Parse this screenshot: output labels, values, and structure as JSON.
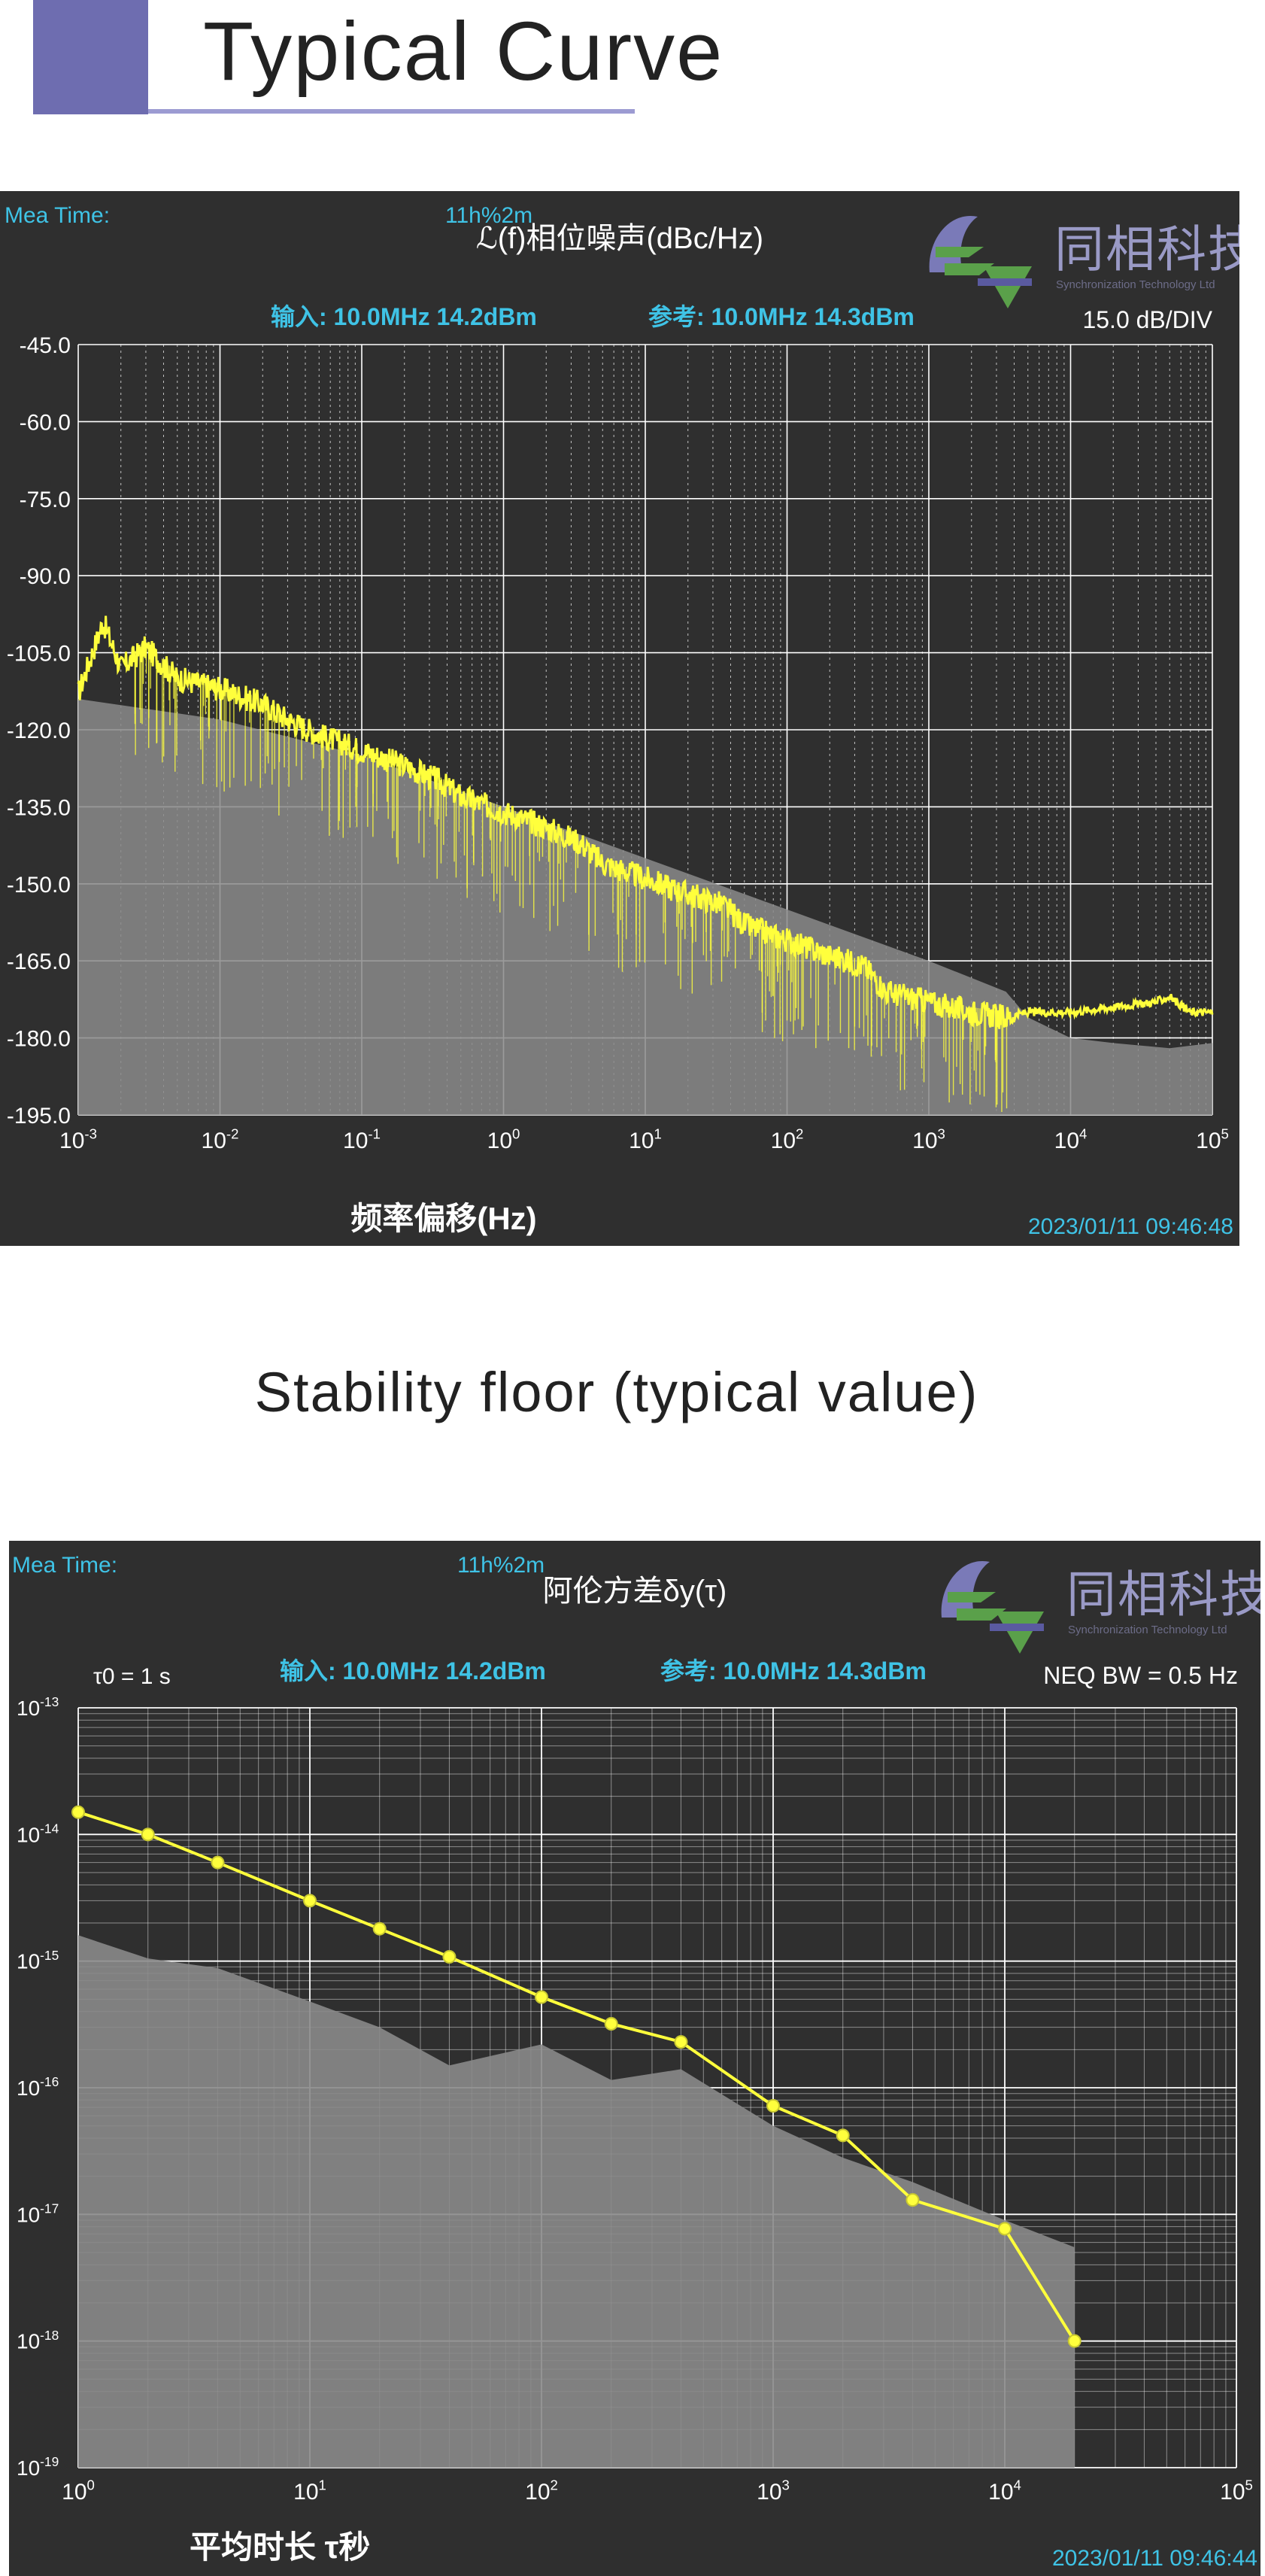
{
  "page": {
    "title": "Typical Curve",
    "section_title": "Stability floor (typical value)"
  },
  "colors": {
    "header_block": "#6e6db0",
    "header_line": "#9c9bd2",
    "chart_bg": "#2f2f2f",
    "grid": "#ffffff",
    "trace": "#ffff3c",
    "floor": "#8a8a8a",
    "info_text": "#3fc3e6",
    "white_text": "#ffffff"
  },
  "chart_data": [
    {
      "type": "line",
      "title": "ℒ(f)相位噪声(dBc/Hz)",
      "mea_time_label": "Mea Time:",
      "mea_time_value": "11h%2m",
      "input_info": "输入: 10.0MHz 14.2dBm",
      "ref_info": "参考: 10.0MHz 14.3dBm",
      "scale_info": "15.0 dB/DIV",
      "xlabel": "频率偏移(Hz)",
      "timestamp": "2023/01/11 09:46:48",
      "logo_cn": "同相科技",
      "logo_en": "Synchronization Technology Ltd",
      "x_scale": "log",
      "xlim": [
        0.001,
        100000
      ],
      "ylim": [
        -195,
        -45
      ],
      "x_ticks": [
        {
          "base": "10",
          "exp": "-3"
        },
        {
          "base": "10",
          "exp": "-2"
        },
        {
          "base": "10",
          "exp": "-1"
        },
        {
          "base": "10",
          "exp": "0"
        },
        {
          "base": "10",
          "exp": "1"
        },
        {
          "base": "10",
          "exp": "2"
        },
        {
          "base": "10",
          "exp": "3"
        },
        {
          "base": "10",
          "exp": "4"
        },
        {
          "base": "10",
          "exp": "5"
        }
      ],
      "y_ticks": [
        "-45.0",
        "-60.0",
        "-75.0",
        "-90.0",
        "-105.0",
        "-120.0",
        "-135.0",
        "-150.0",
        "-165.0",
        "-180.0",
        "-195.0"
      ],
      "grid": true,
      "series": [
        {
          "role": "measured",
          "x": [
            0.001,
            0.0015,
            0.002,
            0.003,
            0.005,
            0.01,
            0.02,
            0.03,
            0.05,
            0.1,
            0.2,
            0.35,
            0.5,
            1,
            2,
            3.5,
            5,
            10,
            20,
            35,
            50,
            100,
            200,
            350,
            500,
            1000,
            2000,
            3500,
            5000,
            10000,
            20000,
            40000,
            50000,
            70000,
            100000
          ],
          "y": [
            -113,
            -99,
            -108,
            -104,
            -110,
            -112,
            -115,
            -118,
            -121,
            -124,
            -127,
            -130,
            -133,
            -136,
            -139,
            -142,
            -146,
            -149,
            -152,
            -154,
            -158,
            -161,
            -164,
            -166,
            -171,
            -173,
            -175,
            -176,
            -175,
            -175,
            -174,
            -173,
            -172,
            -175,
            -175
          ]
        },
        {
          "role": "floor",
          "x": [
            0.001,
            0.01,
            0.1,
            1,
            10,
            100,
            1000,
            3500,
            5000,
            10000,
            20000,
            50000,
            100000
          ],
          "y": [
            -114,
            -118,
            -125,
            -135,
            -145,
            -155,
            -165,
            -171,
            -176,
            -180,
            -181,
            -182,
            -181
          ]
        }
      ]
    },
    {
      "type": "line",
      "title": "阿伦方差δy(τ)",
      "mea_time_label": "Mea Time:",
      "mea_time_value": "11h%2m",
      "tau0_info": "τ0 = 1 s",
      "input_info": "输入: 10.0MHz 14.2dBm",
      "ref_info": "参考: 10.0MHz 14.3dBm",
      "bw_info": "NEQ BW = 0.5 Hz",
      "xlabel": "平均时长 τ秒",
      "timestamp": "2023/01/11 09:46:44",
      "logo_cn": "同相科技",
      "logo_en": "Synchronization Technology Ltd",
      "x_scale": "log",
      "y_scale": "log",
      "xlim": [
        1,
        100000
      ],
      "ylim": [
        1e-19,
        1e-13
      ],
      "x_ticks": [
        {
          "base": "10",
          "exp": "0"
        },
        {
          "base": "10",
          "exp": "1"
        },
        {
          "base": "10",
          "exp": "2"
        },
        {
          "base": "10",
          "exp": "3"
        },
        {
          "base": "10",
          "exp": "4"
        },
        {
          "base": "10",
          "exp": "5"
        }
      ],
      "y_ticks": [
        {
          "base": "10",
          "exp": "-13"
        },
        {
          "base": "10",
          "exp": "-14"
        },
        {
          "base": "10",
          "exp": "-15"
        },
        {
          "base": "10",
          "exp": "-16"
        },
        {
          "base": "10",
          "exp": "-17"
        },
        {
          "base": "10",
          "exp": "-18"
        },
        {
          "base": "10",
          "exp": "-19"
        }
      ],
      "grid": true,
      "series": [
        {
          "role": "measured",
          "x": [
            1,
            2,
            4,
            10,
            20,
            40,
            100,
            200,
            400,
            1000,
            2000,
            4000,
            10000,
            20000
          ],
          "y": [
            1.5e-14,
            1e-14,
            6e-15,
            3e-15,
            1.8e-15,
            1.08e-15,
            5.2e-16,
            3.2e-16,
            2.3e-16,
            7.2e-17,
            4.2e-17,
            1.3e-17,
            7.7e-18,
            1e-18
          ]
        },
        {
          "role": "floor",
          "x": [
            1,
            2,
            4,
            10,
            20,
            40,
            100,
            200,
            400,
            1000,
            2000,
            4000,
            10000,
            20000
          ],
          "y": [
            1.6e-15,
            1.05e-15,
            8.8e-16,
            4.8e-16,
            3e-16,
            1.5e-16,
            2.2e-16,
            1.15e-16,
            1.4e-16,
            5e-17,
            2.8e-17,
            1.8e-17,
            9e-18,
            5.5e-18
          ]
        }
      ]
    }
  ]
}
